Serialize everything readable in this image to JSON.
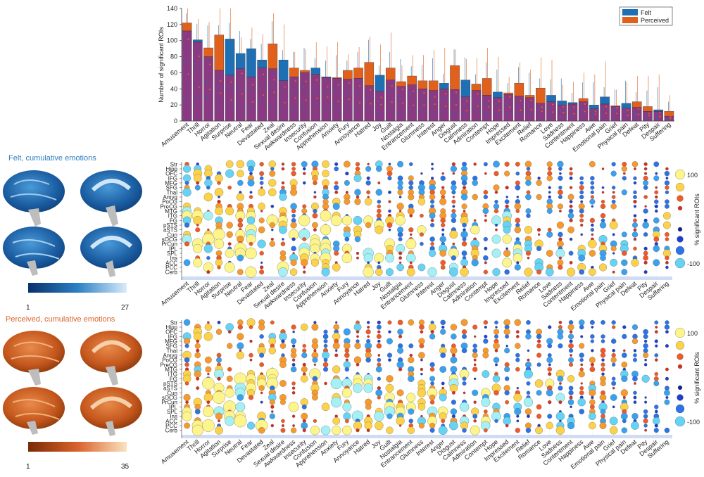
{
  "panelA": {
    "title_felt": "Felt, cumulative emotions",
    "title_perceived": "Perceived, cumulative emotions",
    "felt_cbar_min": "1",
    "felt_cbar_max": "27",
    "perceived_cbar_min": "1",
    "perceived_cbar_max": "35",
    "colors": {
      "felt_text": "#2f7fc1",
      "perceived_text": "#d9622b"
    }
  },
  "chart_data": [
    {
      "type": "bar",
      "title": "",
      "ylabel": "Number of significant ROIs",
      "xlabel": "",
      "ylim": [
        0,
        140
      ],
      "yticks": [
        0,
        20,
        40,
        60,
        80,
        100,
        120,
        140
      ],
      "legend": {
        "position": "top-right",
        "entries": [
          "Felt",
          "Perceived"
        ]
      },
      "colors": {
        "felt": "#1f6fb4",
        "perceived": "#e0601c",
        "overlap": "#8a3a82"
      },
      "categories": [
        "Amusement",
        "Thrill",
        "Horror",
        "Agitation",
        "Surprise",
        "Neutral",
        "Fear",
        "Devastated",
        "Zeal",
        "Sexual desire",
        "Awkwardness",
        "Insecurity",
        "Confusion",
        "Apprehension",
        "Anxiety",
        "Fury",
        "Annoyance",
        "Hatred",
        "Joy",
        "Guilt",
        "Nostalgia",
        "Entrancement",
        "Glumness",
        "Interest",
        "Anger",
        "Disgust",
        "Calmness",
        "Admiration",
        "Contempt",
        "Hope",
        "Impressed",
        "Excitement",
        "Relief",
        "Romance",
        "Love",
        "Sadness",
        "Contentment",
        "Happiness",
        "Awe",
        "Emotional pain",
        "Grief",
        "Physical pain",
        "Defeat",
        "Pity",
        "Despair",
        "Suffering"
      ],
      "series": [
        {
          "name": "Felt",
          "values": [
            112,
            101,
            80,
            63,
            102,
            84,
            90,
            76,
            65,
            76,
            55,
            60,
            66,
            55,
            53,
            52,
            53,
            44,
            57,
            51,
            43,
            45,
            40,
            38,
            47,
            39,
            51,
            38,
            32,
            36,
            33,
            31,
            29,
            22,
            32,
            25,
            23,
            24,
            20,
            30,
            18,
            22,
            17,
            12,
            14,
            6
          ]
        },
        {
          "name": "Perceived",
          "values": [
            122,
            98,
            91,
            107,
            57,
            65,
            55,
            66,
            96,
            50,
            66,
            63,
            58,
            54,
            54,
            63,
            66,
            73,
            37,
            66,
            49,
            56,
            50,
            50,
            40,
            69,
            30,
            46,
            53,
            29,
            35,
            47,
            32,
            41,
            24,
            20,
            21,
            28,
            15,
            21,
            19,
            16,
            24,
            18,
            12,
            12
          ]
        }
      ]
    },
    {
      "type": "scatter",
      "title": "",
      "xlabel": "",
      "ylabel": "% significant ROIs",
      "colorbar_ticks": [
        "100",
        "-100"
      ],
      "y_labels": [
        "Str",
        "Hipp",
        "OFC",
        "IFG",
        "MFG",
        "SFG",
        "Thal",
        "Amyg",
        "PoCG",
        "PreCG",
        "MTG",
        "ITG",
        "FG",
        "pSTS",
        "aSTS",
        "Cun",
        "sOCG",
        "PrCun",
        "IPL",
        "SPL",
        "Ins",
        "ACC",
        "PCC",
        "Cerb"
      ],
      "x_labels": [
        "Amusement",
        "Thrill",
        "Horror",
        "Agitation",
        "Surprise",
        "Neutral",
        "Fear",
        "Devastated",
        "Zeal",
        "Sexual desire",
        "Awkwardness",
        "Insecurity",
        "Confusion",
        "Apprehension",
        "Anxiety",
        "Fury",
        "Annoyance",
        "Hatred",
        "Joy",
        "Guilt",
        "Nostalgia",
        "Entrancement",
        "Glumness",
        "Interest",
        "Anger",
        "Disgust",
        "Calmness",
        "Admiration",
        "Contempt",
        "Hope",
        "Impressed",
        "Excitement",
        "Relief",
        "Romance",
        "Love",
        "Sadness",
        "Contentment",
        "Happiness",
        "Awe",
        "Emotional pain",
        "Grief",
        "Physical pain",
        "Defeat",
        "Pity",
        "Despair",
        "Suffering"
      ]
    },
    {
      "type": "scatter",
      "title": "",
      "xlabel": "",
      "ylabel": "% significant ROIs",
      "colorbar_ticks": [
        "100",
        "-100"
      ],
      "y_labels": [
        "Str",
        "Hipp",
        "OFC",
        "IFG",
        "MFG",
        "SFG",
        "Thal",
        "Amyg",
        "PoCG",
        "PreCG",
        "MTG",
        "ITG",
        "FG",
        "pSTS",
        "aSTS",
        "Cun",
        "sOCG",
        "PrCun",
        "IPL",
        "SPL",
        "Ins",
        "ACC",
        "PCC",
        "Cerb"
      ],
      "x_labels": [
        "Amusement",
        "Thrill",
        "Horror",
        "Agitation",
        "Surprise",
        "Neutral",
        "Fear",
        "Devastated",
        "Zeal",
        "Sexual desire",
        "Awkwardness",
        "Insecurity",
        "Confusion",
        "Apprehension",
        "Anxiety",
        "Fury",
        "Annoyance",
        "Hatred",
        "Joy",
        "Guilt",
        "Nostalgia",
        "Entrancement",
        "Glumness",
        "Interest",
        "Anger",
        "Disgust",
        "Calmness",
        "Admiration",
        "Contempt",
        "Hope",
        "Impressed",
        "Excitement",
        "Relief",
        "Romance",
        "Love",
        "Sadness",
        "Contentment",
        "Happiness",
        "Awe",
        "Emotional pain",
        "Grief",
        "Physical pain",
        "Defeat",
        "Pity",
        "Despair",
        "Suffering"
      ]
    }
  ]
}
